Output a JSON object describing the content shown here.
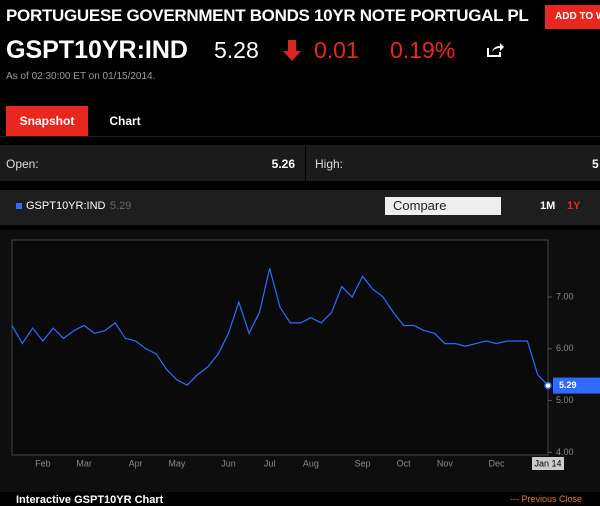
{
  "header": {
    "title": "PORTUGUESE GOVERNMENT BONDS 10YR NOTE PORTUGAL PL",
    "watch_button": "ADD TO W"
  },
  "quote": {
    "ticker": "GSPT10YR:IND",
    "price": 5.28,
    "change": 0.01,
    "change_percent": "0.19%",
    "timestamp": "As of 02:30:00 ET on 01/15/2014."
  },
  "tabs": [
    "Snapshot",
    "Chart"
  ],
  "stats": {
    "open_label": "Open:",
    "open": 5.26,
    "high_label": "High:",
    "high": "5"
  },
  "chart_panel": {
    "compare": "Compare",
    "ranges": [
      "1M",
      "1Y"
    ],
    "footer_title": "Interactive GSPT10YR Chart",
    "previous_close": "--- Previous Close"
  },
  "chart_data": {
    "type": "line",
    "categories": [
      null,
      null,
      null,
      "Feb",
      null,
      null,
      null,
      "Mar",
      null,
      null,
      null,
      null,
      "Apr",
      null,
      null,
      null,
      "May",
      null,
      null,
      null,
      null,
      "Jun",
      null,
      null,
      null,
      "Jul",
      null,
      null,
      null,
      "Aug",
      null,
      null,
      null,
      null,
      "Sep",
      null,
      null,
      null,
      "Oct",
      null,
      null,
      null,
      "Nov",
      null,
      null,
      null,
      null,
      "Dec",
      null,
      null,
      null,
      null,
      "Jan 14"
    ],
    "series": [
      {
        "name": "GSPT10YR:IND",
        "color": "#2f6bff",
        "values": [
          6.45,
          6.1,
          6.4,
          6.15,
          6.4,
          6.2,
          6.35,
          6.45,
          6.3,
          6.35,
          6.5,
          6.2,
          6.15,
          6.0,
          5.9,
          5.6,
          5.4,
          5.3,
          5.5,
          5.65,
          5.9,
          6.3,
          6.9,
          6.3,
          6.7,
          7.55,
          6.8,
          6.5,
          6.5,
          6.6,
          6.5,
          6.7,
          7.2,
          7.0,
          7.4,
          7.15,
          7.0,
          6.7,
          6.45,
          6.45,
          6.35,
          6.3,
          6.1,
          6.1,
          6.05,
          6.1,
          6.15,
          6.1,
          6.15,
          6.15,
          6.15,
          5.5,
          5.29
        ]
      }
    ],
    "ylim": [
      3.95,
      8.1
    ],
    "yticks": [
      {
        "value": 4,
        "label": "4.00"
      },
      {
        "value": 5,
        "label": "5.00"
      },
      {
        "value": 6,
        "label": "6.00"
      },
      {
        "value": 7,
        "label": "7.00"
      }
    ],
    "grid": false
  }
}
